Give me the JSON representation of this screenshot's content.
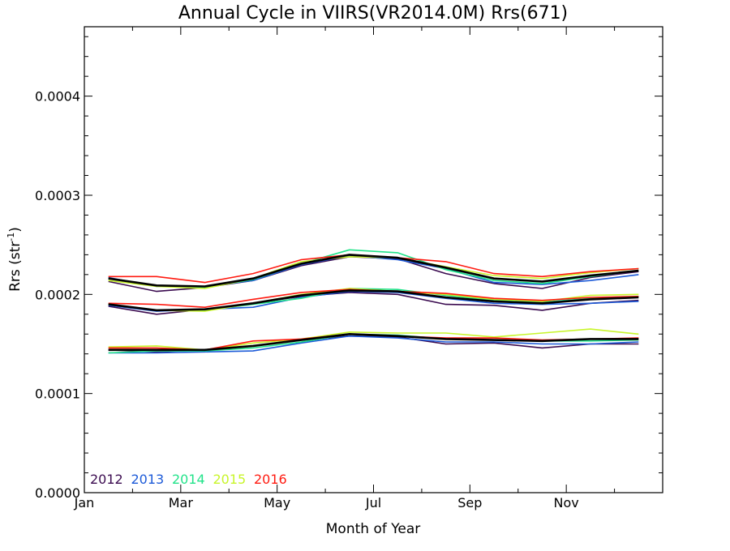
{
  "chart_data": {
    "type": "line",
    "title": "Annual Cycle in VIIRS(VR2014.0M) Rrs(671)",
    "xlabel": "Month of Year",
    "ylabel_main": "Rrs (str",
    "ylabel_sup": "-1",
    "ylabel_end": ")",
    "xlim": [
      0,
      12
    ],
    "ylim": [
      0,
      0.00047
    ],
    "x_ticks": [
      {
        "value": 0,
        "label": "Jan"
      },
      {
        "value": 2,
        "label": "Mar"
      },
      {
        "value": 4,
        "label": "May"
      },
      {
        "value": 6,
        "label": "Jul"
      },
      {
        "value": 8,
        "label": "Sep"
      },
      {
        "value": 10,
        "label": "Nov"
      }
    ],
    "y_ticks": [
      {
        "value": 0,
        "label": "0.0000"
      },
      {
        "value": 0.0001,
        "label": "0.0001"
      },
      {
        "value": 0.0002,
        "label": "0.0002"
      },
      {
        "value": 0.0003,
        "label": "0.0003"
      },
      {
        "value": 0.0004,
        "label": "0.0004"
      }
    ],
    "x": [
      0.5,
      1.5,
      2.5,
      3.5,
      4.5,
      5.5,
      6.5,
      7.5,
      8.5,
      9.5,
      10.5,
      11.5
    ],
    "legend": [
      {
        "name": "2012",
        "color": "#3a0a4f"
      },
      {
        "name": "2013",
        "color": "#1c5ad8"
      },
      {
        "name": "2014",
        "color": "#22e38a"
      },
      {
        "name": "2015",
        "color": "#c8f52a"
      },
      {
        "name": "2016",
        "color": "#ff1a10"
      }
    ],
    "series": [
      {
        "year": "2012",
        "band": "upper",
        "color": "#3a0a4f",
        "values": [
          0.000213,
          0.000203,
          0.000207,
          0.000214,
          0.000229,
          0.000238,
          0.000236,
          0.000221,
          0.000211,
          0.000206,
          0.000217,
          0.000223
        ]
      },
      {
        "year": "2013",
        "band": "upper",
        "color": "#1c5ad8",
        "values": [
          0.000217,
          0.000208,
          0.000208,
          0.000214,
          0.00023,
          0.000239,
          0.000235,
          0.000226,
          0.000212,
          0.00021,
          0.000214,
          0.00022
        ]
      },
      {
        "year": "2014",
        "band": "upper",
        "color": "#22e38a",
        "values": [
          0.000216,
          0.000209,
          0.000207,
          0.000215,
          0.000231,
          0.000245,
          0.000242,
          0.000225,
          0.000214,
          0.000211,
          0.000218,
          0.000224
        ]
      },
      {
        "year": "2015",
        "band": "upper",
        "color": "#c8f52a",
        "values": [
          0.000214,
          0.000208,
          0.000206,
          0.000216,
          0.000233,
          0.000238,
          0.000237,
          0.000228,
          0.000219,
          0.000216,
          0.000222,
          0.000226
        ]
      },
      {
        "year": "2016",
        "band": "upper",
        "color": "#ff1a10",
        "values": [
          0.000218,
          0.000218,
          0.000212,
          0.000221,
          0.000235,
          0.00024,
          0.000237,
          0.000233,
          0.000221,
          0.000218,
          0.000223,
          0.000226
        ]
      },
      {
        "year": "mean",
        "band": "upper",
        "color": "#000000",
        "values": [
          0.000216,
          0.000209,
          0.000208,
          0.000216,
          0.000231,
          0.00024,
          0.000237,
          0.000227,
          0.000216,
          0.000213,
          0.000219,
          0.000224
        ]
      },
      {
        "year": "2012",
        "band": "middle",
        "color": "#3a0a4f",
        "values": [
          0.000188,
          0.00018,
          0.000185,
          0.000191,
          0.000198,
          0.000202,
          0.0002,
          0.00019,
          0.000189,
          0.000184,
          0.000191,
          0.000194
        ]
      },
      {
        "year": "2013",
        "band": "middle",
        "color": "#1c5ad8",
        "values": [
          0.000189,
          0.000183,
          0.000185,
          0.000187,
          0.000197,
          0.000203,
          0.000202,
          0.000196,
          0.000191,
          0.00019,
          0.000191,
          0.000193
        ]
      },
      {
        "year": "2014",
        "band": "middle",
        "color": "#22e38a",
        "values": [
          0.00019,
          0.000184,
          0.000184,
          0.00019,
          0.000196,
          0.000206,
          0.000205,
          0.000199,
          0.000194,
          0.000192,
          0.000196,
          0.000198
        ]
      },
      {
        "year": "2015",
        "band": "middle",
        "color": "#c8f52a",
        "values": [
          0.00019,
          0.000184,
          0.000183,
          0.000191,
          0.0002,
          0.000206,
          0.000203,
          0.0002,
          0.000195,
          0.000193,
          0.000199,
          0.0002
        ]
      },
      {
        "year": "2016",
        "band": "middle",
        "color": "#ff1a10",
        "values": [
          0.000191,
          0.00019,
          0.000187,
          0.000195,
          0.000202,
          0.000205,
          0.000203,
          0.000201,
          0.000196,
          0.000194,
          0.000197,
          0.000198
        ]
      },
      {
        "year": "mean",
        "band": "middle",
        "color": "#000000",
        "values": [
          0.00019,
          0.000184,
          0.000185,
          0.000191,
          0.000199,
          0.000204,
          0.000203,
          0.000197,
          0.000193,
          0.000191,
          0.000195,
          0.000197
        ]
      },
      {
        "year": "2012",
        "band": "lower",
        "color": "#3a0a4f",
        "values": [
          0.000144,
          0.000142,
          0.000144,
          0.000148,
          0.000154,
          0.000158,
          0.000157,
          0.00015,
          0.000151,
          0.000146,
          0.00015,
          0.00015
        ]
      },
      {
        "year": "2013",
        "band": "lower",
        "color": "#1c5ad8",
        "values": [
          0.000141,
          0.000141,
          0.000142,
          0.000143,
          0.000151,
          0.000158,
          0.000156,
          0.000152,
          0.000152,
          0.00015,
          0.00015,
          0.000152
        ]
      },
      {
        "year": "2014",
        "band": "lower",
        "color": "#22e38a",
        "values": [
          0.000141,
          0.000143,
          0.000143,
          0.000146,
          0.000152,
          0.00016,
          0.000159,
          0.000155,
          0.000154,
          0.000153,
          0.000153,
          0.000154
        ]
      },
      {
        "year": "2015",
        "band": "lower",
        "color": "#c8f52a",
        "values": [
          0.000147,
          0.000148,
          0.000144,
          0.000151,
          0.000155,
          0.000162,
          0.000161,
          0.000161,
          0.000157,
          0.000161,
          0.000165,
          0.00016
        ]
      },
      {
        "year": "2016",
        "band": "lower",
        "color": "#ff1a10",
        "values": [
          0.000146,
          0.000146,
          0.000144,
          0.000153,
          0.000155,
          0.00016,
          0.000158,
          0.000156,
          0.000156,
          0.000154,
          0.000155,
          0.000156
        ]
      },
      {
        "year": "mean",
        "band": "lower",
        "color": "#000000",
        "values": [
          0.000144,
          0.000144,
          0.000144,
          0.000148,
          0.000154,
          0.00016,
          0.000158,
          0.000155,
          0.000154,
          0.000153,
          0.000155,
          0.000155
        ]
      }
    ]
  }
}
